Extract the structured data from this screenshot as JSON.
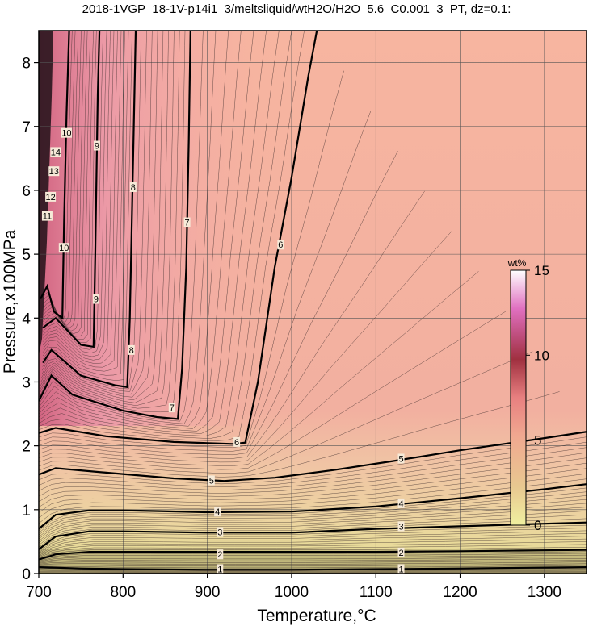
{
  "chart_data": {
    "type": "heatmap",
    "title": "2018-1VGP_18-1V-p14i1_3/meltsliquid/wtH2O/H2O_5.6_C0.001_3_PT, dz=0.1:",
    "xlabel": "Temperature,°C",
    "ylabel": "Pressure,x100MPa",
    "xlim": [
      700,
      1350
    ],
    "ylim": [
      0,
      8.5
    ],
    "xticks": [
      700,
      800,
      900,
      1000,
      1100,
      1200,
      1300
    ],
    "yticks": [
      0,
      1,
      2,
      3,
      4,
      5,
      6,
      7,
      8
    ],
    "grid": true,
    "colorbar": {
      "unit": "wt%",
      "range": [
        0,
        15
      ],
      "ticks": [
        0,
        5,
        10,
        15
      ],
      "colors": [
        "#f0f0a0",
        "#e8c890",
        "#f0a890",
        "#e88080",
        "#a03040",
        "#e070c0",
        "#ffffff"
      ]
    },
    "major_contours": [
      {
        "level": 1,
        "points": [
          [
            700,
            0.1
          ],
          [
            750,
            0.08
          ],
          [
            800,
            0.07
          ],
          [
            900,
            0.06
          ],
          [
            1000,
            0.06
          ],
          [
            1100,
            0.07
          ],
          [
            1200,
            0.08
          ],
          [
            1270,
            0.09
          ],
          [
            1350,
            0.1
          ]
        ]
      },
      {
        "level": 2,
        "points": [
          [
            700,
            0.22
          ],
          [
            720,
            0.3
          ],
          [
            760,
            0.34
          ],
          [
            800,
            0.34
          ],
          [
            900,
            0.34
          ],
          [
            1000,
            0.34
          ],
          [
            1100,
            0.34
          ],
          [
            1200,
            0.35
          ],
          [
            1270,
            0.36
          ],
          [
            1350,
            0.37
          ]
        ]
      },
      {
        "level": 3,
        "points": [
          [
            700,
            0.38
          ],
          [
            720,
            0.58
          ],
          [
            760,
            0.66
          ],
          [
            800,
            0.66
          ],
          [
            900,
            0.64
          ],
          [
            1000,
            0.64
          ],
          [
            1100,
            0.7
          ],
          [
            1200,
            0.74
          ],
          [
            1300,
            0.78
          ],
          [
            1350,
            0.8
          ]
        ]
      },
      {
        "level": 4,
        "points": [
          [
            700,
            0.7
          ],
          [
            720,
            0.92
          ],
          [
            760,
            0.99
          ],
          [
            800,
            0.99
          ],
          [
            900,
            0.96
          ],
          [
            1000,
            0.97
          ],
          [
            1100,
            1.05
          ],
          [
            1200,
            1.18
          ],
          [
            1300,
            1.32
          ],
          [
            1350,
            1.4
          ]
        ]
      },
      {
        "level": 5,
        "points": [
          [
            700,
            1.55
          ],
          [
            720,
            1.65
          ],
          [
            780,
            1.58
          ],
          [
            860,
            1.49
          ],
          [
            920,
            1.45
          ],
          [
            980,
            1.5
          ],
          [
            1050,
            1.62
          ],
          [
            1120,
            1.76
          ],
          [
            1200,
            1.93
          ],
          [
            1300,
            2.12
          ],
          [
            1350,
            2.22
          ]
        ]
      },
      {
        "level": 6,
        "points": [
          [
            700,
            2.2
          ],
          [
            720,
            2.28
          ],
          [
            780,
            2.15
          ],
          [
            860,
            2.06
          ],
          [
            930,
            2.03
          ],
          [
            945,
            2.05
          ],
          [
            960,
            3.0
          ],
          [
            980,
            4.8
          ],
          [
            1000,
            6.2
          ],
          [
            1020,
            7.8
          ],
          [
            1030,
            8.5
          ]
        ]
      },
      {
        "level": 7,
        "points": [
          [
            700,
            2.7
          ],
          [
            715,
            3.1
          ],
          [
            740,
            2.8
          ],
          [
            800,
            2.55
          ],
          [
            840,
            2.45
          ],
          [
            865,
            2.42
          ],
          [
            870,
            3.2
          ],
          [
            875,
            4.8
          ],
          [
            878,
            6.8
          ],
          [
            880,
            8.5
          ]
        ]
      },
      {
        "level": 8,
        "points": [
          [
            705,
            3.3
          ],
          [
            715,
            3.5
          ],
          [
            750,
            3.1
          ],
          [
            790,
            2.95
          ],
          [
            805,
            2.92
          ],
          [
            808,
            4.0
          ],
          [
            812,
            6.5
          ],
          [
            815,
            8.5
          ]
        ]
      },
      {
        "level": 9,
        "points": [
          [
            705,
            3.85
          ],
          [
            720,
            4.0
          ],
          [
            750,
            3.58
          ],
          [
            765,
            3.55
          ],
          [
            767,
            5.0
          ],
          [
            770,
            7.5
          ],
          [
            772,
            8.5
          ]
        ]
      },
      {
        "level": 10,
        "points": [
          [
            702,
            4.3
          ],
          [
            710,
            4.5
          ],
          [
            718,
            4.1
          ],
          [
            728,
            4.0
          ],
          [
            730,
            5.5
          ],
          [
            733,
            7.2
          ],
          [
            736,
            8.5
          ]
        ]
      }
    ],
    "contour_labels": [
      {
        "text": "1",
        "x": 915,
        "y": 0.07
      },
      {
        "text": "1",
        "x": 1130,
        "y": 0.07
      },
      {
        "text": "2",
        "x": 915,
        "y": 0.3
      },
      {
        "text": "2",
        "x": 1130,
        "y": 0.33
      },
      {
        "text": "3",
        "x": 915,
        "y": 0.65
      },
      {
        "text": "3",
        "x": 1130,
        "y": 0.74
      },
      {
        "text": "4",
        "x": 912,
        "y": 0.97
      },
      {
        "text": "4",
        "x": 1130,
        "y": 1.1
      },
      {
        "text": "5",
        "x": 905,
        "y": 1.46
      },
      {
        "text": "5",
        "x": 1130,
        "y": 1.8
      },
      {
        "text": "6",
        "x": 935,
        "y": 2.06
      },
      {
        "text": "6",
        "x": 987,
        "y": 5.15
      },
      {
        "text": "7",
        "x": 858,
        "y": 2.6
      },
      {
        "text": "7",
        "x": 876,
        "y": 5.5
      },
      {
        "text": "8",
        "x": 810,
        "y": 3.5
      },
      {
        "text": "8",
        "x": 812,
        "y": 6.05
      },
      {
        "text": "9",
        "x": 768,
        "y": 4.3
      },
      {
        "text": "9",
        "x": 769,
        "y": 6.7
      },
      {
        "text": "10",
        "x": 730,
        "y": 5.1
      },
      {
        "text": "10",
        "x": 733,
        "y": 6.9
      },
      {
        "text": "11",
        "x": 710,
        "y": 5.6
      },
      {
        "text": "12",
        "x": 714,
        "y": 5.9
      },
      {
        "text": "13",
        "x": 718,
        "y": 6.3
      },
      {
        "text": "14",
        "x": 720,
        "y": 6.6
      }
    ]
  }
}
